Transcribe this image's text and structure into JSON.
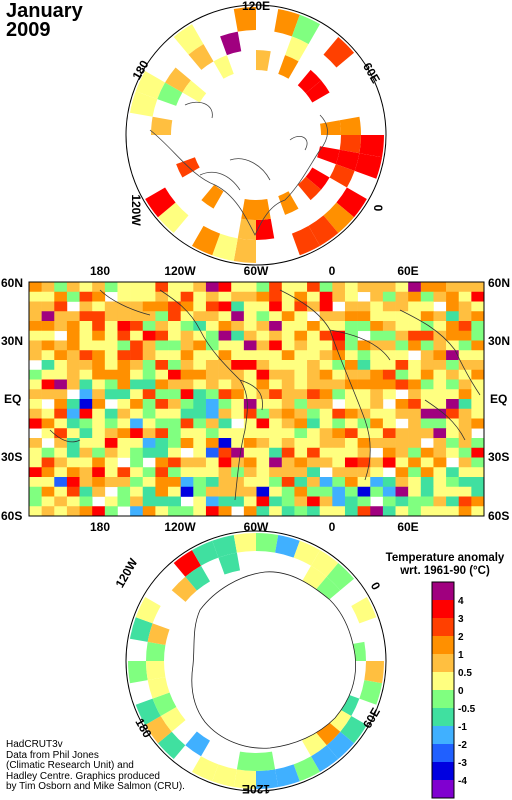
{
  "title": {
    "month": "January",
    "year": "2009"
  },
  "north_polar": {
    "labels": {
      "top": "120E",
      "upper_right": "60E",
      "right": "0",
      "upper_left": "180",
      "left": "120W"
    }
  },
  "equatorial_map": {
    "top_lon_labels": [
      "180",
      "120W",
      "60W",
      "0",
      "60E"
    ],
    "bottom_lon_labels": [
      "180",
      "120W",
      "60W",
      "0",
      "60E"
    ],
    "lat_labels": [
      "60N",
      "30N",
      "EQ",
      "30S",
      "60S"
    ]
  },
  "south_polar": {
    "labels": {
      "upper_left": "120W",
      "upper_right": "0",
      "lower_left": "180",
      "lower_right": "60E",
      "bottom": "120E"
    }
  },
  "legend": {
    "title_line1": "Temperature anomaly",
    "title_line2": "wrt. 1961-90  (°C)",
    "ticks": [
      "4",
      "3",
      "2",
      "1",
      "0.5",
      "0",
      "-0.5",
      "-1",
      "-2",
      "-3",
      "-4"
    ],
    "colors": [
      "#a0007f",
      "#ff0000",
      "#ff4000",
      "#ff9000",
      "#ffbf40",
      "#ffff80",
      "#80ff80",
      "#40e0a0",
      "#40b0ff",
      "#2060ff",
      "#0000e0",
      "#8000d0"
    ]
  },
  "credit": {
    "line1": "HadCRUT3v",
    "line2": "Data from Phil Jones",
    "line3": "(Climatic Research Unit) and",
    "line4": "Hadley Centre.  Graphics produced",
    "line5": "by Tim Osborn and Mike Salmon (CRU)."
  }
}
